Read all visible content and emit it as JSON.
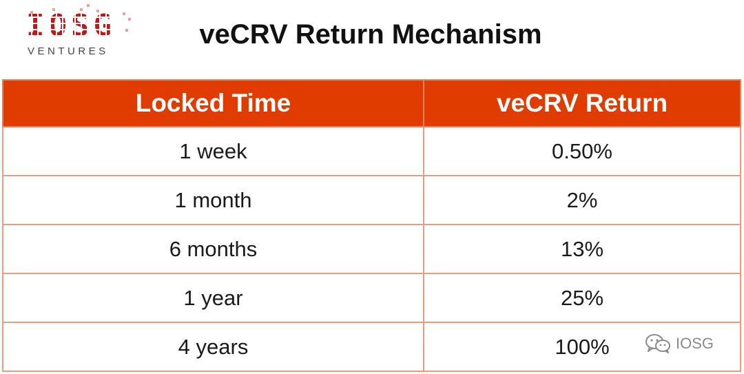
{
  "logo": {
    "mark": "IOSG",
    "sub": "VENTURES"
  },
  "title": "veCRV Return Mechanism",
  "table": {
    "headers": [
      "Locked Time",
      "veCRV Return"
    ],
    "rows": [
      [
        "1 week",
        "0.50%"
      ],
      [
        "1 month",
        "2%"
      ],
      [
        "6 months",
        "13%"
      ],
      [
        "1 year",
        "25%"
      ],
      [
        "4 years",
        "100%"
      ]
    ]
  },
  "watermark": {
    "icon": "wechat-icon",
    "label": "IOSG"
  },
  "colors": {
    "header_bg": "#e03c00",
    "border": "#ee9b7b",
    "logo_red": "#c01818"
  }
}
